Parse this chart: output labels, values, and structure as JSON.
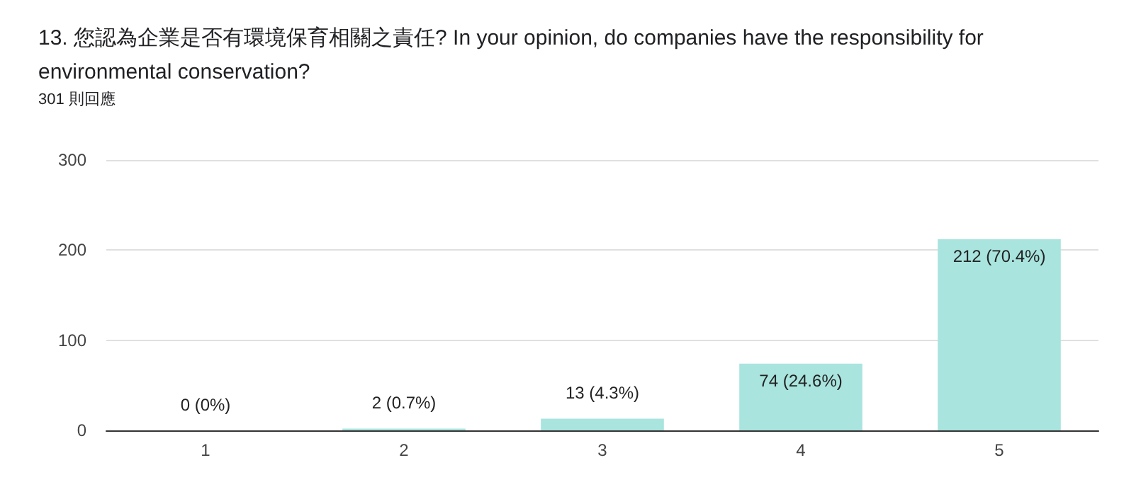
{
  "chart_data": {
    "type": "bar",
    "title": "13. 您認為企業是否有環境保育相關之責任? In your opinion, do companies have the responsibility for environmental conservation?",
    "subtitle": "301 則回應",
    "categories": [
      "1",
      "2",
      "3",
      "4",
      "5"
    ],
    "values": [
      0,
      2,
      13,
      74,
      212
    ],
    "value_labels": [
      "0 (0%)",
      "2 (0.7%)",
      "13 (4.3%)",
      "74 (24.6%)",
      "212 (70.4%)"
    ],
    "color": "#a9e4de",
    "ylim": [
      0,
      300
    ],
    "yticks": [
      0,
      100,
      200,
      300
    ],
    "grid": "y"
  }
}
